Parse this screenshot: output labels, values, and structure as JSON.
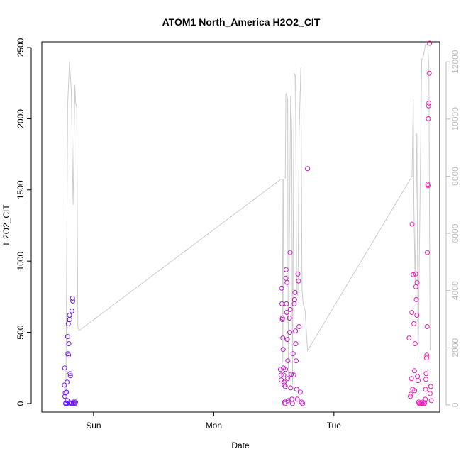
{
  "chart_data": {
    "type": "scatter",
    "title": "ATOM1 North_America H2O2_CIT",
    "xlabel": "Date",
    "ylabel": "H2O2_CIT",
    "x_ticks": [
      {
        "label": "Sun",
        "value": 1.0
      },
      {
        "label": "Mon",
        "value": 2.0
      },
      {
        "label": "Tue",
        "value": 3.0
      }
    ],
    "xlim": [
      0.57,
      3.88
    ],
    "ylim": [
      -60,
      2540
    ],
    "y_ticks": [
      0,
      500,
      1000,
      1500,
      2000,
      2500
    ],
    "y2lim": [
      -250,
      12700
    ],
    "y2_ticks": [
      0,
      2000,
      4000,
      6000,
      8000,
      10000,
      12000
    ],
    "y2_color": "#bbbbbb",
    "line_color": "#cccccc",
    "point_color_start": "#6a17ff",
    "point_color_end": "#ff17b0",
    "line_series": [
      [
        0.76,
        0
      ],
      [
        0.77,
        400
      ],
      [
        0.785,
        10500
      ],
      [
        0.8,
        12000
      ],
      [
        0.815,
        11000
      ],
      [
        0.83,
        7000
      ],
      [
        0.845,
        11200
      ],
      [
        0.85,
        10600
      ],
      [
        0.86,
        10400
      ],
      [
        0.87,
        2700
      ],
      [
        0.88,
        2600
      ],
      [
        2.56,
        7900
      ],
      [
        2.57,
        7900
      ],
      [
        2.575,
        1500
      ],
      [
        2.58,
        7900
      ],
      [
        2.595,
        7900
      ],
      [
        2.6,
        10900
      ],
      [
        2.615,
        10700
      ],
      [
        2.62,
        800
      ],
      [
        2.63,
        6000
      ],
      [
        2.64,
        10800
      ],
      [
        2.65,
        9500
      ],
      [
        2.655,
        700
      ],
      [
        2.665,
        9000
      ],
      [
        2.67,
        11600
      ],
      [
        2.68,
        11500
      ],
      [
        2.69,
        4000
      ],
      [
        2.7,
        3800
      ],
      [
        2.71,
        9500
      ],
      [
        2.725,
        11800
      ],
      [
        2.735,
        4000
      ],
      [
        2.745,
        3500
      ],
      [
        2.76,
        3300
      ],
      [
        2.78,
        1900
      ],
      [
        3.65,
        8000
      ],
      [
        3.66,
        10700
      ],
      [
        3.665,
        6900
      ],
      [
        3.675,
        4300
      ],
      [
        3.69,
        9500
      ],
      [
        3.7,
        1500
      ],
      [
        3.73,
        12100
      ],
      [
        3.74,
        12100
      ],
      [
        3.76,
        12600
      ],
      [
        3.78,
        12600
      ],
      [
        3.79,
        11800
      ],
      [
        3.8,
        1900
      ]
    ],
    "points": [
      {
        "x": 0.758,
        "y": 130
      },
      {
        "x": 0.76,
        "y": 250
      },
      {
        "x": 0.762,
        "y": 50
      },
      {
        "x": 0.765,
        "y": 75
      },
      {
        "x": 0.768,
        "y": 0
      },
      {
        "x": 0.77,
        "y": 5
      },
      {
        "x": 0.775,
        "y": 80
      },
      {
        "x": 0.778,
        "y": 0
      },
      {
        "x": 0.78,
        "y": 150
      },
      {
        "x": 0.782,
        "y": 20
      },
      {
        "x": 0.785,
        "y": 470
      },
      {
        "x": 0.787,
        "y": 350
      },
      {
        "x": 0.79,
        "y": 560
      },
      {
        "x": 0.792,
        "y": 340
      },
      {
        "x": 0.795,
        "y": 420
      },
      {
        "x": 0.797,
        "y": 5
      },
      {
        "x": 0.8,
        "y": 620
      },
      {
        "x": 0.802,
        "y": 590
      },
      {
        "x": 0.805,
        "y": 210
      },
      {
        "x": 0.807,
        "y": 195
      },
      {
        "x": 0.81,
        "y": 5
      },
      {
        "x": 0.815,
        "y": 0
      },
      {
        "x": 0.82,
        "y": 650
      },
      {
        "x": 0.825,
        "y": 740
      },
      {
        "x": 0.827,
        "y": 720
      },
      {
        "x": 0.83,
        "y": 0
      },
      {
        "x": 0.835,
        "y": 10
      },
      {
        "x": 0.84,
        "y": 5
      },
      {
        "x": 0.845,
        "y": 0
      },
      {
        "x": 0.85,
        "y": 10
      },
      {
        "x": 2.555,
        "y": 240
      },
      {
        "x": 2.56,
        "y": 200
      },
      {
        "x": 2.562,
        "y": 165
      },
      {
        "x": 2.565,
        "y": 810
      },
      {
        "x": 2.567,
        "y": 700
      },
      {
        "x": 2.57,
        "y": 590
      },
      {
        "x": 2.572,
        "y": 600
      },
      {
        "x": 2.575,
        "y": 460
      },
      {
        "x": 2.577,
        "y": 380
      },
      {
        "x": 2.58,
        "y": 250
      },
      {
        "x": 2.582,
        "y": 200
      },
      {
        "x": 2.585,
        "y": 150
      },
      {
        "x": 2.587,
        "y": 130
      },
      {
        "x": 2.59,
        "y": 10
      },
      {
        "x": 2.592,
        "y": 0
      },
      {
        "x": 2.595,
        "y": 120
      },
      {
        "x": 2.597,
        "y": 240
      },
      {
        "x": 2.6,
        "y": 880
      },
      {
        "x": 2.602,
        "y": 940
      },
      {
        "x": 2.605,
        "y": 700
      },
      {
        "x": 2.607,
        "y": 640
      },
      {
        "x": 2.61,
        "y": 850
      },
      {
        "x": 2.612,
        "y": 450
      },
      {
        "x": 2.615,
        "y": 175
      },
      {
        "x": 2.617,
        "y": 300
      },
      {
        "x": 2.62,
        "y": 20
      },
      {
        "x": 2.625,
        "y": 10
      },
      {
        "x": 2.63,
        "y": 600
      },
      {
        "x": 2.632,
        "y": 500
      },
      {
        "x": 2.635,
        "y": 1060
      },
      {
        "x": 2.637,
        "y": 660
      },
      {
        "x": 2.64,
        "y": 110
      },
      {
        "x": 2.645,
        "y": 205
      },
      {
        "x": 2.65,
        "y": 30
      },
      {
        "x": 2.655,
        "y": 0
      },
      {
        "x": 2.66,
        "y": 350
      },
      {
        "x": 2.665,
        "y": 200
      },
      {
        "x": 2.67,
        "y": 700
      },
      {
        "x": 2.672,
        "y": 730
      },
      {
        "x": 2.675,
        "y": 780
      },
      {
        "x": 2.68,
        "y": 510
      },
      {
        "x": 2.682,
        "y": 420
      },
      {
        "x": 2.685,
        "y": 300
      },
      {
        "x": 2.69,
        "y": 100
      },
      {
        "x": 2.695,
        "y": 30
      },
      {
        "x": 2.7,
        "y": 910
      },
      {
        "x": 2.705,
        "y": 860
      },
      {
        "x": 2.71,
        "y": 540
      },
      {
        "x": 2.72,
        "y": 80
      },
      {
        "x": 2.73,
        "y": 10
      },
      {
        "x": 2.74,
        "y": 0
      },
      {
        "x": 2.78,
        "y": 1650
      },
      {
        "x": 3.625,
        "y": 460
      },
      {
        "x": 3.635,
        "y": 50
      },
      {
        "x": 3.64,
        "y": 65
      },
      {
        "x": 3.645,
        "y": 175
      },
      {
        "x": 3.648,
        "y": 640
      },
      {
        "x": 3.65,
        "y": 1260
      },
      {
        "x": 3.655,
        "y": 100
      },
      {
        "x": 3.66,
        "y": 905
      },
      {
        "x": 3.665,
        "y": 560
      },
      {
        "x": 3.67,
        "y": 230
      },
      {
        "x": 3.672,
        "y": 90
      },
      {
        "x": 3.675,
        "y": 420
      },
      {
        "x": 3.68,
        "y": 910
      },
      {
        "x": 3.682,
        "y": 820
      },
      {
        "x": 3.685,
        "y": 730
      },
      {
        "x": 3.69,
        "y": 620
      },
      {
        "x": 3.692,
        "y": 850
      },
      {
        "x": 3.695,
        "y": 190
      },
      {
        "x": 3.7,
        "y": 160
      },
      {
        "x": 3.705,
        "y": 10
      },
      {
        "x": 3.71,
        "y": 0
      },
      {
        "x": 3.715,
        "y": 0
      },
      {
        "x": 3.72,
        "y": 5
      },
      {
        "x": 3.73,
        "y": 2
      },
      {
        "x": 3.74,
        "y": 10
      },
      {
        "x": 3.75,
        "y": 0
      },
      {
        "x": 3.755,
        "y": 5
      },
      {
        "x": 3.76,
        "y": 30
      },
      {
        "x": 3.762,
        "y": 100
      },
      {
        "x": 3.765,
        "y": 170
      },
      {
        "x": 3.767,
        "y": 210
      },
      {
        "x": 3.77,
        "y": 320
      },
      {
        "x": 3.772,
        "y": 340
      },
      {
        "x": 3.775,
        "y": 540
      },
      {
        "x": 3.777,
        "y": 1060
      },
      {
        "x": 3.78,
        "y": 1540
      },
      {
        "x": 3.782,
        "y": 1530
      },
      {
        "x": 3.785,
        "y": 2000
      },
      {
        "x": 3.787,
        "y": 2090
      },
      {
        "x": 3.79,
        "y": 2110
      },
      {
        "x": 3.792,
        "y": 2320
      },
      {
        "x": 3.795,
        "y": 2530
      },
      {
        "x": 3.8,
        "y": 70
      },
      {
        "x": 3.805,
        "y": 120
      },
      {
        "x": 3.81,
        "y": 20
      }
    ]
  }
}
